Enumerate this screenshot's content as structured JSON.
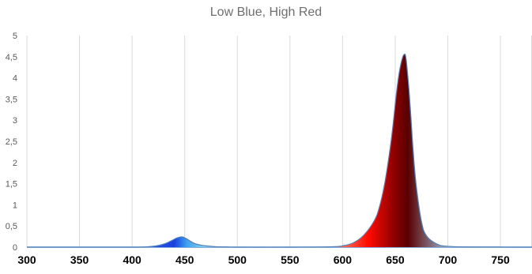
{
  "chart_data": {
    "type": "area",
    "title": "Low Blue, High Red",
    "xlabel": "",
    "ylabel": "",
    "xlim": [
      300,
      780
    ],
    "ylim": [
      0,
      5
    ],
    "grid": "vertical",
    "x_ticks": [
      "300",
      "350",
      "400",
      "450",
      "500",
      "550",
      "600",
      "650",
      "700",
      "750"
    ],
    "y_ticks": [
      "0",
      "0,5",
      "1",
      "1,5",
      "2",
      "2,5",
      "3",
      "3,5",
      "4",
      "4,5",
      "5"
    ],
    "series": [
      {
        "x": [
          300,
          350,
          400,
          415,
          425,
          432,
          438,
          442,
          446,
          448,
          450,
          453,
          456,
          460,
          465,
          470,
          480,
          490,
          500,
          550,
          590,
          600,
          610,
          620,
          630,
          635,
          640,
          645,
          648,
          651,
          654,
          657,
          659,
          660,
          661,
          663,
          665,
          667,
          670,
          675,
          680,
          690,
          700,
          720,
          780
        ],
        "values": [
          0,
          0,
          0,
          0.01,
          0.04,
          0.09,
          0.16,
          0.21,
          0.24,
          0.24,
          0.22,
          0.18,
          0.13,
          0.08,
          0.05,
          0.03,
          0.01,
          0.005,
          0,
          0,
          0.01,
          0.03,
          0.1,
          0.28,
          0.62,
          0.95,
          1.5,
          2.3,
          2.9,
          3.6,
          4.15,
          4.48,
          4.56,
          4.5,
          4.3,
          3.75,
          3.05,
          2.3,
          1.45,
          0.6,
          0.26,
          0.07,
          0.02,
          0.005,
          0
        ]
      }
    ],
    "colors": {
      "blue_peak": "#1a3fe0",
      "blue_light": "#3da0f0",
      "red_bright": "#ff0a00",
      "red_dark": "#5a0000",
      "outline": "#4f7fb8",
      "grid": "#d9d9d9",
      "tick_text": "#595959"
    }
  }
}
